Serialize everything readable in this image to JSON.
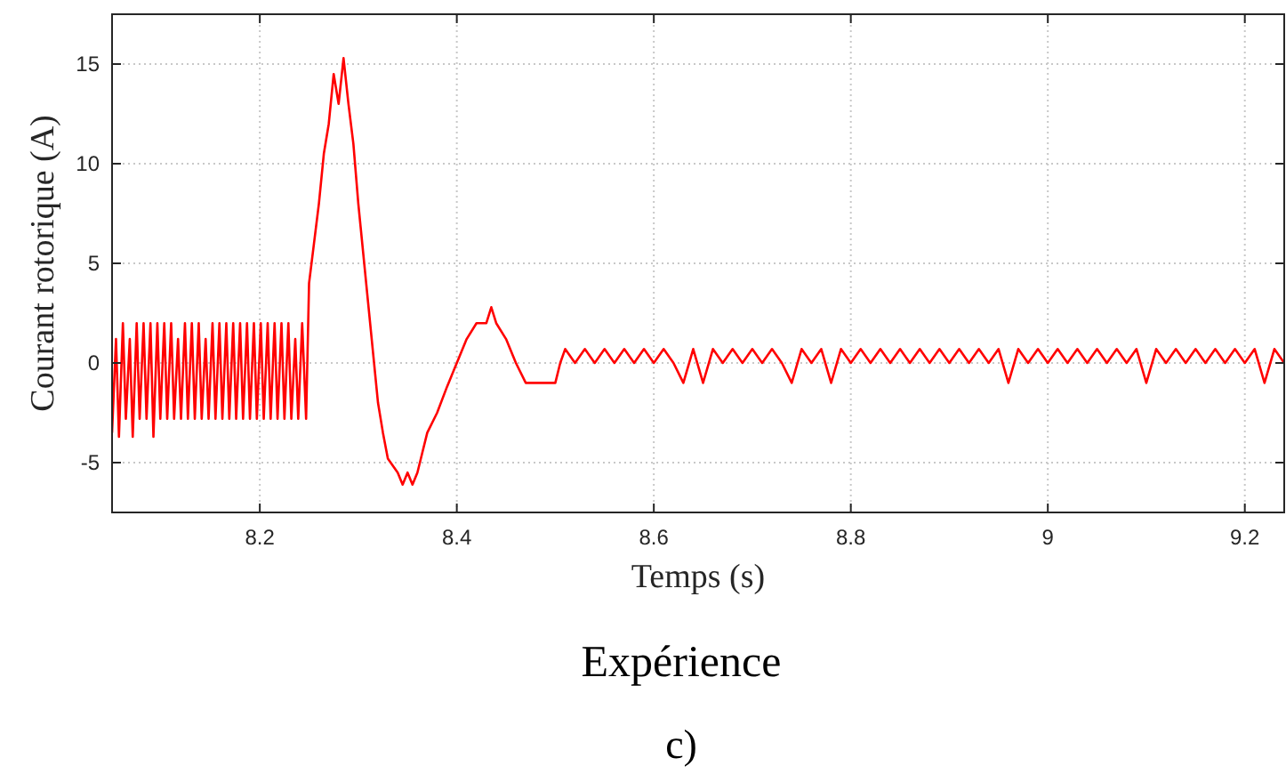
{
  "chart_data": {
    "type": "line",
    "xlabel": "Temps (s)",
    "ylabel": "Courant rotorique (A)",
    "annotations": [
      "Expérience",
      "c)"
    ],
    "xlim": [
      8.05,
      9.24
    ],
    "ylim": [
      -7.5,
      17.5
    ],
    "xticks": [
      {
        "value": 8.2,
        "label": "8.2"
      },
      {
        "value": 8.4,
        "label": "8.4"
      },
      {
        "value": 8.6,
        "label": "8.6"
      },
      {
        "value": 8.8,
        "label": "8.8"
      },
      9,
      {
        "value": 9.2,
        "label": "9.2"
      }
    ],
    "yticks": [
      -5,
      0,
      5,
      10,
      15
    ],
    "grid": true,
    "marker": "none",
    "line_style": "solid",
    "series": [
      {
        "color": "#ff0000",
        "x": [
          8.05,
          8.054,
          8.057,
          8.061,
          8.064,
          8.068,
          8.071,
          8.075,
          8.078,
          8.082,
          8.085,
          8.089,
          8.092,
          8.096,
          8.099,
          8.103,
          8.106,
          8.11,
          8.113,
          8.117,
          8.12,
          8.124,
          8.127,
          8.131,
          8.134,
          8.138,
          8.141,
          8.145,
          8.148,
          8.152,
          8.155,
          8.159,
          8.162,
          8.166,
          8.169,
          8.173,
          8.176,
          8.18,
          8.183,
          8.187,
          8.19,
          8.194,
          8.197,
          8.201,
          8.204,
          8.208,
          8.211,
          8.215,
          8.218,
          8.222,
          8.225,
          8.229,
          8.232,
          8.236,
          8.239,
          8.243,
          8.247,
          8.25,
          8.255,
          8.26,
          8.265,
          8.27,
          8.275,
          8.28,
          8.285,
          8.29,
          8.295,
          8.3,
          8.305,
          8.31,
          8.315,
          8.32,
          8.325,
          8.33,
          8.34,
          8.345,
          8.35,
          8.355,
          8.36,
          8.365,
          8.37,
          8.38,
          8.39,
          8.4,
          8.41,
          8.42,
          8.43,
          8.435,
          8.44,
          8.45,
          8.46,
          8.47,
          8.48,
          8.49,
          8.5,
          8.505,
          8.51,
          8.52,
          8.53,
          8.54,
          8.55,
          8.56,
          8.57,
          8.58,
          8.59,
          8.6,
          8.61,
          8.62,
          8.63,
          8.64,
          8.65,
          8.66,
          8.67,
          8.68,
          8.69,
          8.7,
          8.71,
          8.72,
          8.73,
          8.74,
          8.75,
          8.76,
          8.77,
          8.78,
          8.79,
          8.8,
          8.81,
          8.82,
          8.83,
          8.84,
          8.85,
          8.86,
          8.87,
          8.88,
          8.89,
          8.9,
          8.91,
          8.92,
          8.93,
          8.94,
          8.95,
          8.96,
          8.97,
          8.98,
          8.99,
          9,
          9.01,
          9.02,
          9.03,
          9.04,
          9.05,
          9.06,
          9.07,
          9.08,
          9.09,
          9.1,
          9.11,
          9.12,
          9.13,
          9.14,
          9.15,
          9.16,
          9.17,
          9.18,
          9.19,
          9.2,
          9.21,
          9.22,
          9.23,
          9.24
        ],
        "values": [
          -3.5,
          1.2,
          -3.7,
          2,
          -2.8,
          1.2,
          -3.7,
          2,
          -2.8,
          2,
          -2.8,
          2,
          -3.7,
          2,
          -2.8,
          2,
          -2.8,
          2,
          -2.8,
          1.2,
          -2.8,
          2,
          -2.8,
          2,
          -2.8,
          2,
          -2.8,
          1.2,
          -2.8,
          2,
          -2.8,
          2,
          -2.8,
          2,
          -2.8,
          2,
          -2.8,
          2,
          -2.8,
          2,
          -2.8,
          2,
          -2.8,
          2,
          -2.8,
          2,
          -2.8,
          2,
          -2.8,
          2,
          -2.8,
          2,
          -2.8,
          1.2,
          -2.8,
          2,
          -2.8,
          4,
          6,
          8,
          10.5,
          12,
          14.5,
          13,
          15.3,
          13,
          11,
          8,
          5.5,
          3,
          0.5,
          -2,
          -3.5,
          -4.8,
          -5.5,
          -6.1,
          -5.5,
          -6.1,
          -5.5,
          -4.5,
          -3.5,
          -2.5,
          -1.2,
          0,
          1.2,
          2,
          2,
          2.8,
          2,
          1.2,
          0,
          -1,
          -1,
          -1,
          -1,
          0,
          0.7,
          0,
          0.7,
          0,
          0.7,
          0,
          0.7,
          0,
          0.7,
          0,
          0.7,
          0,
          -1,
          0.7,
          -1,
          0.7,
          0,
          0.7,
          0,
          0.7,
          0,
          0.7,
          0,
          -1,
          0.7,
          0,
          0.7,
          -1,
          0.7,
          0,
          0.7,
          0,
          0.7,
          0,
          0.7,
          0,
          0.7,
          0,
          0.7,
          0,
          0.7,
          0,
          0.7,
          0,
          0.7,
          -1,
          0.7,
          0,
          0.7,
          0,
          0.7,
          0,
          0.7,
          0,
          0.7,
          0,
          0.7,
          0,
          0.7,
          -1,
          0.7,
          0,
          0.7,
          0,
          0.7,
          0,
          0.7,
          0,
          0.7,
          0,
          0.7,
          -1,
          0.7,
          0
        ]
      }
    ]
  }
}
